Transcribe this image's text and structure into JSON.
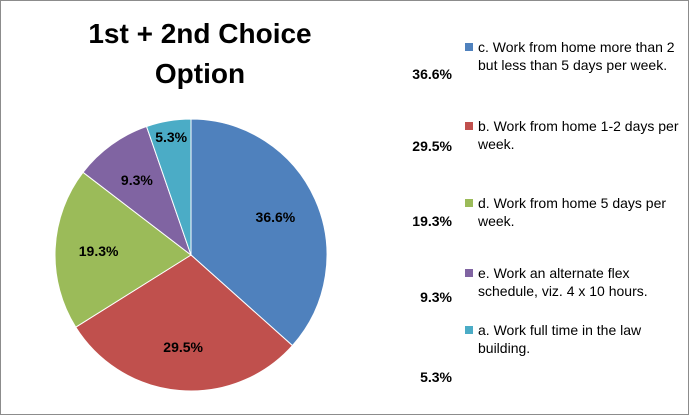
{
  "chart_data": {
    "type": "pie",
    "title": "1st + 2nd Choice Option",
    "categories": [
      "c. Work from home more than 2 but less than 5 days per week.",
      "b. Work from home 1-2 days per week.",
      "d. Work from home 5 days per week.",
      "e. Work an alternate flex schedule, viz. 4 x 10 hours.",
      "a. Work full time in the law building."
    ],
    "values": [
      36.6,
      29.5,
      19.3,
      9.3,
      5.3
    ],
    "value_labels": [
      "36.6%",
      "29.5%",
      "19.3%",
      "9.3%",
      "5.3%"
    ],
    "colors": [
      "#4f81bd",
      "#c0504d",
      "#9bbb59",
      "#8064a2",
      "#4bacc6"
    ],
    "legend": "right"
  }
}
